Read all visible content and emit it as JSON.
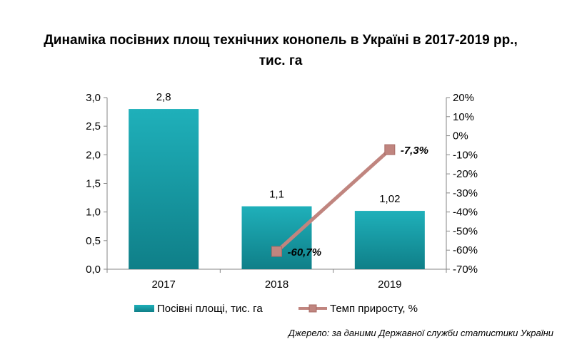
{
  "chart_data": {
    "type": "bar",
    "title_lines": [
      "Динаміка посівних площ технічних конопель в Україні в 2017-2019 рр.,",
      "тис. га"
    ],
    "categories": [
      "2017",
      "2018",
      "2019"
    ],
    "series": [
      {
        "name": "Посівні площі, тис. га",
        "type": "bar",
        "axis": "left",
        "values": [
          2.8,
          1.1,
          1.02
        ],
        "labels": [
          "2,8",
          "1,1",
          "1,02"
        ],
        "color": "#1aa0aa"
      },
      {
        "name": "Темп приросту, %",
        "type": "line",
        "axis": "right",
        "values": [
          null,
          -60.7,
          -7.3
        ],
        "labels": [
          "",
          "-60,7%",
          "-7,3%"
        ],
        "color": "#c0857f"
      }
    ],
    "y_left": {
      "min": 0,
      "max": 3,
      "ticks": [
        0,
        0.5,
        1,
        1.5,
        2,
        2.5,
        3
      ],
      "tick_labels": [
        "0,0",
        "0,5",
        "1,0",
        "1,5",
        "2,0",
        "2,5",
        "3,0"
      ]
    },
    "y_right": {
      "min": -70,
      "max": 20,
      "ticks": [
        -70,
        -60,
        -50,
        -40,
        -30,
        -20,
        -10,
        0,
        10,
        20
      ],
      "tick_labels": [
        "-70%",
        "-60%",
        "-50%",
        "-40%",
        "-30%",
        "-20%",
        "-10%",
        "0%",
        "10%",
        "20%"
      ]
    },
    "grid": false,
    "legend_position": "bottom",
    "source": "Джерело: за даними Державної служби статистики України"
  }
}
